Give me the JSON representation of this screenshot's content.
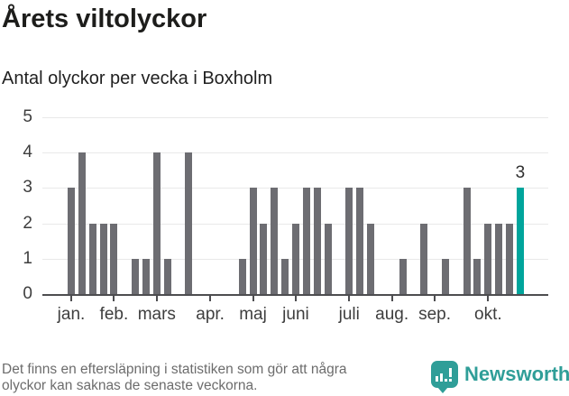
{
  "header": {
    "title": "Årets viltolyckor",
    "subtitle": "Antal olyckor per vecka i Boxholm"
  },
  "colors": {
    "bar": "#6d6d72",
    "highlight": "#00a59c",
    "grid": "#e9e9e9",
    "axis": "#4d4d50",
    "tick_label": "#3e3e3e",
    "note_text": "#6c6c6c",
    "brand": "#2f9e98"
  },
  "chart_data": {
    "type": "bar",
    "title": "Årets viltolyckor",
    "subtitle": "Antal olyckor per vecka i Boxholm",
    "xlabel": "",
    "ylabel": "",
    "x_unit": "vecka",
    "weeks": [
      1,
      2,
      3,
      4,
      5,
      6,
      7,
      8,
      9,
      10,
      11,
      12,
      13,
      14,
      15,
      16,
      17,
      18,
      19,
      20,
      21,
      22,
      23,
      24,
      25,
      26,
      27,
      28,
      29,
      30,
      31,
      32,
      33,
      34,
      35,
      36,
      37,
      38,
      39,
      40,
      41,
      42,
      43
    ],
    "values": [
      3,
      4,
      2,
      2,
      2,
      0,
      1,
      1,
      4,
      1,
      0,
      4,
      0,
      0,
      0,
      0,
      1,
      3,
      2,
      3,
      1,
      2,
      3,
      3,
      2,
      0,
      3,
      3,
      2,
      0,
      0,
      1,
      0,
      2,
      0,
      1,
      0,
      3,
      1,
      2,
      2,
      2,
      3
    ],
    "highlight_index": 42,
    "highlight_value_label": "3",
    "ylim": [
      0,
      5
    ],
    "y_ticks": [
      "0",
      "1",
      "2",
      "3",
      "4",
      "5"
    ],
    "month_ticks": [
      {
        "week": 1,
        "label": "jan."
      },
      {
        "week": 5,
        "label": "feb."
      },
      {
        "week": 9,
        "label": "mars"
      },
      {
        "week": 14,
        "label": "apr."
      },
      {
        "week": 18,
        "label": "maj"
      },
      {
        "week": 22,
        "label": "juni"
      },
      {
        "week": 27,
        "label": "juli"
      },
      {
        "week": 31,
        "label": "aug."
      },
      {
        "week": 35,
        "label": "sep."
      },
      {
        "week": 40,
        "label": "okt."
      }
    ],
    "grid": true,
    "legend_position": "none"
  },
  "footer": {
    "note_line1": "Det finns en eftersläpning i statistiken som gör att några",
    "note_line2": "olyckor kan saknas de senaste veckorna.",
    "brand_name": "Newsworthy",
    "brand_icon": "bar-chart-speech-bubble-icon"
  }
}
